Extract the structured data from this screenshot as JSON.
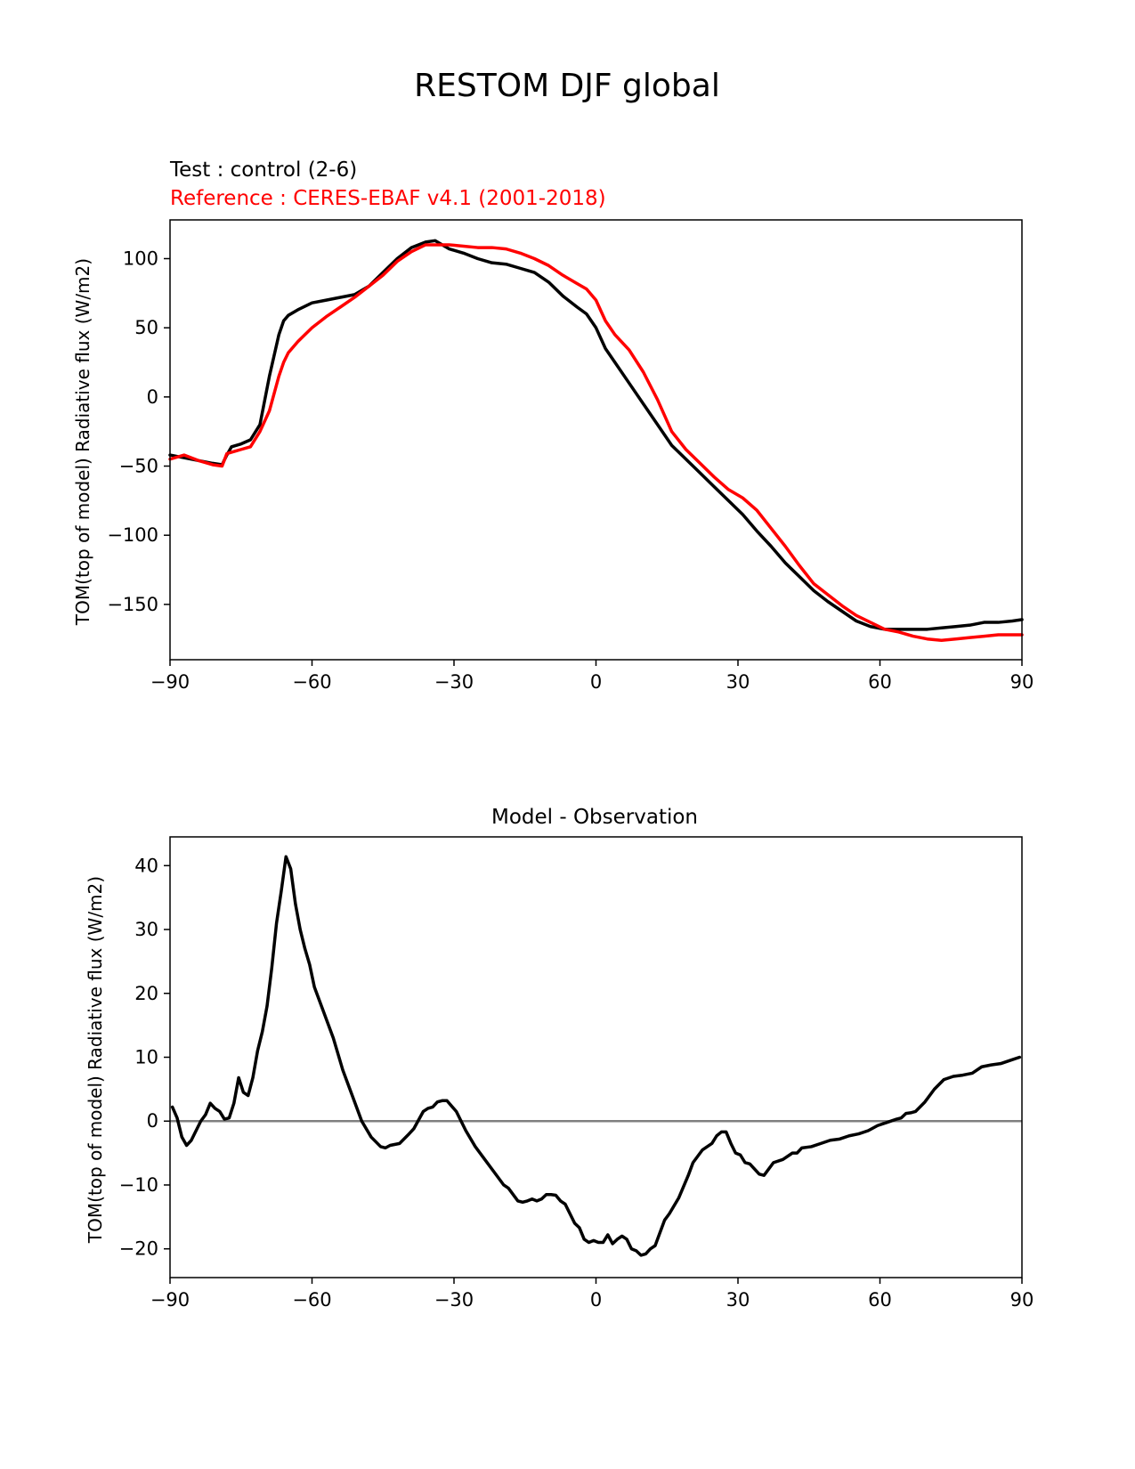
{
  "figure": {
    "suptitle": "RESTOM DJF global",
    "test_label": "Test : control (2-6)",
    "reference_label": "Reference : CERES-EBAF v4.1 (2001-2018)",
    "reference_color": "#ff0000",
    "test_color": "#000000",
    "zero_line_color": "#808080"
  },
  "chart_data": [
    {
      "type": "line",
      "title": "",
      "xlabel": "",
      "ylabel": "TOM(top of model) Radiative flux (W/m2)",
      "xlim": [
        -90,
        90
      ],
      "ylim": [
        -190,
        128
      ],
      "xticks": [
        -90,
        -60,
        -30,
        0,
        30,
        60,
        90
      ],
      "xtick_labels": [
        "−90",
        "−60",
        "−30",
        "0",
        "30",
        "60",
        "90"
      ],
      "yticks": [
        100,
        50,
        0,
        -50,
        -100,
        -150
      ],
      "ytick_labels": [
        "100",
        "50",
        "0",
        "−50",
        "−100",
        "−150"
      ],
      "grid": false,
      "series": [
        {
          "role": "test",
          "color": "#000000",
          "x": [
            -90,
            -87,
            -84,
            -81,
            -79,
            -78,
            -77,
            -75,
            -73,
            -71,
            -69,
            -67,
            -66,
            -65,
            -63,
            -60,
            -57,
            -54,
            -51,
            -48,
            -45,
            -42,
            -39,
            -36,
            -34,
            -33,
            -31,
            -28,
            -25,
            -22,
            -19,
            -16,
            -13,
            -10,
            -7,
            -4,
            -2,
            0,
            2,
            4,
            7,
            10,
            13,
            16,
            19,
            22,
            25,
            28,
            31,
            34,
            37,
            40,
            43,
            46,
            49,
            52,
            55,
            58,
            61,
            64,
            67,
            70,
            73,
            76,
            79,
            82,
            85,
            88,
            90
          ],
          "y": [
            -42,
            -44,
            -46,
            -48,
            -49,
            -42,
            -36,
            -34,
            -31,
            -20,
            15,
            45,
            55,
            59,
            63,
            68,
            70,
            72,
            74,
            80,
            90,
            100,
            108,
            112,
            113,
            111,
            107,
            104,
            100,
            97,
            96,
            93,
            90,
            83,
            73,
            65,
            60,
            50,
            35,
            25,
            10,
            -5,
            -20,
            -35,
            -45,
            -55,
            -65,
            -75,
            -85,
            -97,
            -108,
            -120,
            -130,
            -140,
            -148,
            -155,
            -162,
            -166,
            -168,
            -168,
            -168,
            -168,
            -167,
            -166,
            -165,
            -163,
            -163,
            -162,
            -161
          ]
        },
        {
          "role": "reference",
          "color": "#ff0000",
          "x": [
            -90,
            -87,
            -84,
            -81,
            -79,
            -78,
            -77,
            -75,
            -73,
            -71,
            -69,
            -67,
            -66,
            -65,
            -63,
            -60,
            -57,
            -54,
            -51,
            -48,
            -45,
            -42,
            -39,
            -36,
            -34,
            -33,
            -31,
            -28,
            -25,
            -22,
            -19,
            -16,
            -13,
            -10,
            -7,
            -4,
            -2,
            0,
            2,
            4,
            7,
            10,
            13,
            16,
            19,
            22,
            25,
            28,
            31,
            34,
            37,
            40,
            43,
            46,
            49,
            52,
            55,
            58,
            61,
            64,
            67,
            70,
            73,
            76,
            79,
            82,
            85,
            88,
            90
          ],
          "y": [
            -45,
            -42,
            -46,
            -49,
            -50,
            -41,
            -40,
            -38,
            -36,
            -25,
            -10,
            15,
            25,
            32,
            40,
            50,
            58,
            65,
            72,
            80,
            88,
            98,
            105,
            110,
            110,
            110,
            110,
            109,
            108,
            108,
            107,
            104,
            100,
            95,
            88,
            82,
            78,
            70,
            55,
            45,
            34,
            18,
            -2,
            -25,
            -38,
            -48,
            -58,
            -67,
            -73,
            -82,
            -95,
            -108,
            -122,
            -135,
            -143,
            -151,
            -158,
            -163,
            -168,
            -170,
            -173,
            -175,
            -176,
            -175,
            -174,
            -173,
            -172,
            -172,
            -172
          ]
        }
      ]
    },
    {
      "type": "line",
      "title": "Model - Observation",
      "xlabel": "",
      "ylabel": "TOM(top of model) Radiative flux (W/m2)",
      "xlim": [
        -90,
        90
      ],
      "ylim": [
        -24.5,
        44.5
      ],
      "xticks": [
        -90,
        -60,
        -30,
        0,
        30,
        60,
        90
      ],
      "xtick_labels": [
        "−90",
        "−60",
        "−30",
        "0",
        "30",
        "60",
        "90"
      ],
      "yticks": [
        40,
        30,
        20,
        10,
        0,
        -10,
        -20
      ],
      "ytick_labels": [
        "40",
        "30",
        "20",
        "10",
        "0",
        "−10",
        "−20"
      ],
      "grid": false,
      "zero_line": 0,
      "series": [
        {
          "role": "difference",
          "color": "#000000",
          "x": [
            -89.5,
            -88.5,
            -87.5,
            -86.5,
            -85.5,
            -84.5,
            -83.5,
            -82.5,
            -81.5,
            -80.5,
            -79.5,
            -78.5,
            -77.5,
            -76.5,
            -75.5,
            -74.5,
            -73.5,
            -72.5,
            -71.5,
            -70.5,
            -69.5,
            -68.5,
            -67.5,
            -66.5,
            -65.5,
            -64.5,
            -63.5,
            -62.5,
            -61.5,
            -60.5,
            -59.5,
            -57.5,
            -55.5,
            -53.5,
            -51.5,
            -49.5,
            -47.5,
            -45.5,
            -44.5,
            -43.5,
            -41.5,
            -39.5,
            -38.5,
            -36.5,
            -35.5,
            -34.5,
            -33.5,
            -32.5,
            -31.5,
            -29.5,
            -27.5,
            -25.5,
            -23.5,
            -21.5,
            -19.5,
            -18.5,
            -16.5,
            -15.5,
            -14.5,
            -13.5,
            -12.5,
            -11.5,
            -10.5,
            -9.5,
            -8.5,
            -7.5,
            -6.5,
            -5.5,
            -4.5,
            -3.5,
            -2.5,
            -1.5,
            -0.5,
            0.5,
            1.5,
            2.5,
            3.5,
            4.5,
            5.5,
            6.5,
            7.5,
            8.5,
            9.5,
            10.5,
            11.5,
            12.5,
            13.5,
            14.5,
            15.5,
            17.5,
            19.5,
            20.5,
            22.5,
            24.5,
            25.5,
            26.5,
            27.5,
            28.5,
            29.5,
            30.5,
            31.5,
            32.5,
            33.5,
            34.5,
            35.5,
            37.5,
            39.5,
            41.5,
            42.5,
            43.5,
            45.5,
            47.5,
            49.5,
            51.5,
            53.5,
            55.5,
            57.5,
            59.5,
            61.5,
            63.5,
            64.5,
            65.5,
            66.5,
            67.5,
            69.5,
            71.5,
            73.5,
            75.5,
            77.5,
            79.5,
            81.5,
            83.5,
            85.5,
            87.5,
            89.5
          ],
          "y": [
            2.2,
            0.5,
            -2.5,
            -3.8,
            -3,
            -1.5,
            0,
            1,
            2.8,
            2,
            1.5,
            0.3,
            0.5,
            2.8,
            6.8,
            4.5,
            4,
            6.8,
            11,
            14,
            18,
            24,
            31,
            36,
            41.4,
            39.5,
            34,
            30,
            27,
            24.5,
            21,
            17,
            13,
            8,
            4,
            0,
            -2.5,
            -4,
            -4.2,
            -3.8,
            -3.5,
            -2,
            -1.2,
            1.5,
            2,
            2.2,
            3,
            3.2,
            3.2,
            1.5,
            -1.5,
            -4,
            -6,
            -8,
            -10,
            -10.5,
            -12.5,
            -12.7,
            -12.5,
            -12.2,
            -12.5,
            -12.2,
            -11.5,
            -11.5,
            -11.6,
            -12.5,
            -13,
            -14.5,
            -16,
            -16.7,
            -18.5,
            -19,
            -18.7,
            -19,
            -19,
            -17.8,
            -19.2,
            -18.5,
            -18,
            -18.5,
            -20,
            -20.3,
            -21,
            -20.8,
            -20,
            -19.5,
            -17.5,
            -15.5,
            -14.5,
            -12,
            -8.5,
            -6.5,
            -4.5,
            -3.5,
            -2.3,
            -1.7,
            -1.7,
            -3.5,
            -5,
            -5.3,
            -6.5,
            -6.7,
            -7.5,
            -8.3,
            -8.5,
            -6.5,
            -6,
            -5,
            -5,
            -4.2,
            -4,
            -3.5,
            -3,
            -2.8,
            -2.3,
            -2,
            -1.5,
            -0.7,
            -0.2,
            0.3,
            0.5,
            1.2,
            1.3,
            1.5,
            3,
            5,
            6.5,
            7,
            7.2,
            7.5,
            8.5,
            8.8,
            9,
            9.5,
            10
          ]
        }
      ]
    }
  ]
}
